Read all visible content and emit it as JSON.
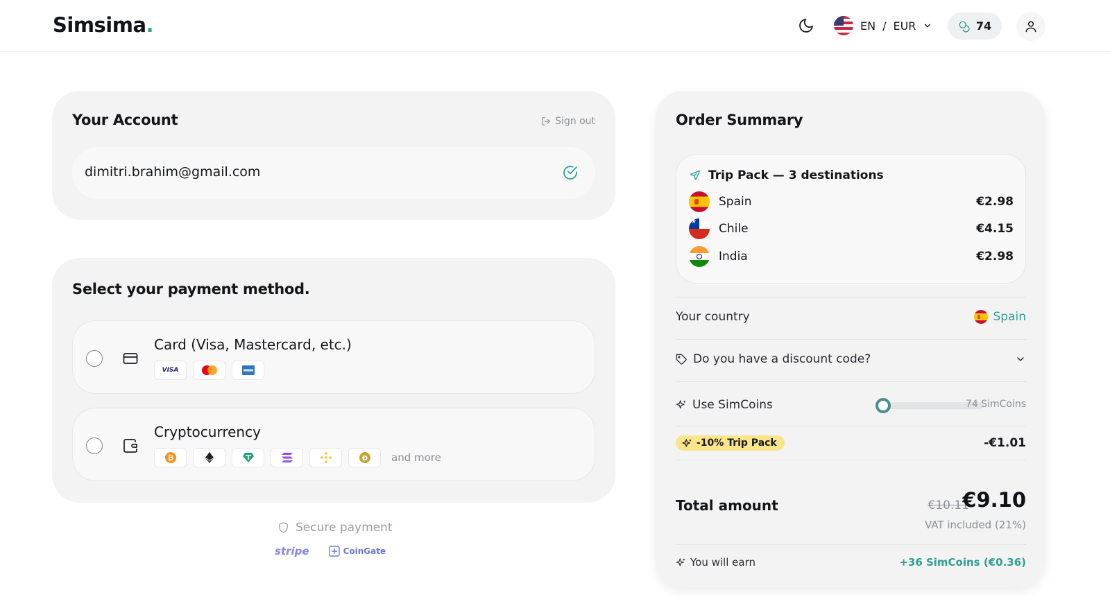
{
  "header": {
    "logo_text": "Simsima",
    "logo_dot": ".",
    "language": "EN",
    "separator": "/",
    "currency": "EUR",
    "simcoins_balance": "74",
    "icons": [
      "moon-icon",
      "us-flag-icon",
      "chevron-down-icon",
      "coins-icon",
      "user-icon"
    ]
  },
  "account": {
    "title": "Your Account",
    "sign_out": "Sign out",
    "email": "dimitri.brahim@gmail.com"
  },
  "payment": {
    "title": "Select your payment method.",
    "methods": [
      {
        "label": "Card (Visa, Mastercard, etc.)",
        "icon": "credit-card-icon",
        "logos": [
          "VISA",
          "mastercard",
          "amex"
        ]
      },
      {
        "label": "Cryptocurrency",
        "icon": "wallet-icon",
        "logos": [
          "bitcoin",
          "ethereum",
          "tether",
          "solana",
          "bnb",
          "dogecoin"
        ],
        "more": "and more"
      }
    ],
    "secure": "Secure payment",
    "providers": [
      "stripe",
      "CoinGate"
    ]
  },
  "summary": {
    "title": "Order Summary",
    "pack_title": "Trip Pack — 3 destinations",
    "items": [
      {
        "country": "Spain",
        "price": "€2.98",
        "flag": "es"
      },
      {
        "country": "Chile",
        "price": "€4.15",
        "flag": "cl"
      },
      {
        "country": "India",
        "price": "€2.98",
        "flag": "in"
      }
    ],
    "your_country_label": "Your country",
    "your_country_value": "Spain",
    "discount_label": "Do you have a discount code?",
    "simcoins_label": "Use SimCoins",
    "simcoins_available": "74 SimCoins",
    "simcoins_used_fraction": 0,
    "promo_label": "-10% Trip Pack",
    "promo_amount": "-€1.01",
    "total_label": "Total amount",
    "total_old": "€10.11",
    "total_new": "€9.10",
    "vat": "VAT included (21%)",
    "earn_label": "You will earn",
    "earn_value": "+36 SimCoins (€0.36)"
  },
  "colors": {
    "accent": "#2f9e95",
    "promo": "#fae58a",
    "card_bg": "#f3f3f4"
  }
}
